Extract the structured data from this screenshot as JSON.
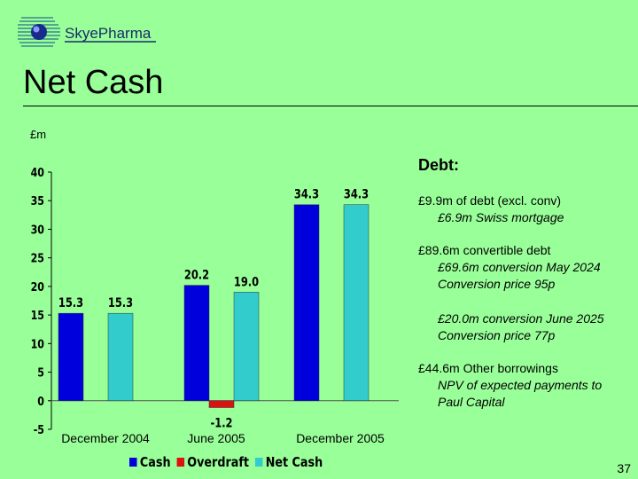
{
  "logo": {
    "text": "SkyePharma"
  },
  "title": "Net Cash",
  "unit_label": "£m",
  "chart_data": {
    "type": "bar",
    "categories": [
      "December 2004",
      "June 2005",
      "December 2005"
    ],
    "series": [
      {
        "name": "Cash",
        "values": [
          15.3,
          20.2,
          34.3
        ],
        "color": "#0000dd"
      },
      {
        "name": "Overdraft",
        "values": [
          null,
          -1.2,
          null
        ],
        "color": "#dd1111"
      },
      {
        "name": "Net Cash",
        "values": [
          15.3,
          19.0,
          34.3
        ],
        "color": "#33cccc"
      }
    ],
    "data_labels": [
      "15.3",
      "20.2",
      "34.3",
      "-1.2",
      "15.3",
      "19.0",
      "34.3"
    ],
    "yticks": [
      "-5",
      "0",
      "5",
      "10",
      "15",
      "20",
      "25",
      "30",
      "35",
      "40"
    ],
    "ylim": [
      -5,
      40
    ],
    "legend": "bottom"
  },
  "debt": {
    "heading": "Debt:",
    "items": [
      {
        "line": "£9.9m of debt (excl. conv)",
        "sub": [
          "£6.9m Swiss mortgage"
        ]
      },
      {
        "line": "£89.6m convertible debt",
        "sub": [
          "£69.6m conversion May 2024",
          "Conversion price 95p"
        ]
      },
      {
        "line": "",
        "sub": [
          "£20.0m conversion June 2025",
          "Conversion price 77p"
        ]
      },
      {
        "line": "£44.6m Other borrowings",
        "sub": [
          "NPV of expected payments to",
          "Paul Capital"
        ]
      }
    ]
  },
  "page_number": "37"
}
